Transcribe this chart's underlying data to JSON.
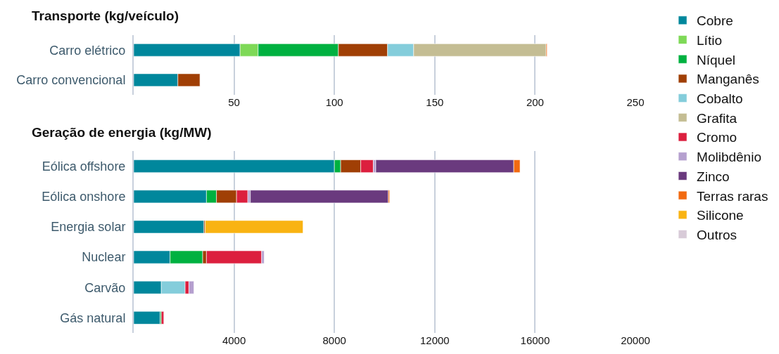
{
  "chart_data": [
    {
      "type": "bar",
      "title": "Transporte (kg/veículo)",
      "orientation": "horizontal",
      "stacked": true,
      "categories": [
        "Carro elétrico",
        "Carro convencional"
      ],
      "xlim": [
        0,
        250
      ],
      "xticks": [
        50,
        100,
        150,
        200,
        250
      ],
      "grid": "x",
      "legend": "right",
      "series": [
        {
          "name": "Cobre",
          "color": "#00879c",
          "values": [
            53,
            22
          ]
        },
        {
          "name": "Lítio",
          "color": "#7ed957",
          "values": [
            9,
            null
          ]
        },
        {
          "name": "Níquel",
          "color": "#00b140",
          "values": [
            40,
            null
          ]
        },
        {
          "name": "Manganês",
          "color": "#a03f05",
          "values": [
            24.5,
            11
          ]
        },
        {
          "name": "Cobalto",
          "color": "#84cddb",
          "values": [
            13,
            null
          ]
        },
        {
          "name": "Grafita",
          "color": "#c4bd93",
          "values": [
            66,
            null
          ]
        },
        {
          "name": "Terras raras",
          "color": "#f26a10",
          "values": [
            0.5,
            null
          ]
        }
      ]
    },
    {
      "type": "bar",
      "title": "Geração de energia (kg/MW)",
      "orientation": "horizontal",
      "stacked": true,
      "categories": [
        "Eólica offshore",
        "Eólica onshore",
        "Energia solar",
        "Nuclear",
        "Carvão",
        "Gás natural"
      ],
      "xlim": [
        0,
        20000
      ],
      "xticks": [
        4000,
        8000,
        12000,
        16000,
        20000
      ],
      "grid": "x",
      "legend": "right",
      "series": [
        {
          "name": "Cobre",
          "color": "#00879c",
          "values": [
            8000,
            2900,
            2800,
            1450,
            1100,
            1050
          ]
        },
        {
          "name": "Níquel",
          "color": "#00b140",
          "values": [
            250,
            400,
            null,
            1300,
            null,
            50
          ]
        },
        {
          "name": "Manganês",
          "color": "#a03f05",
          "values": [
            800,
            800,
            50,
            150,
            null,
            null
          ]
        },
        {
          "name": "Cobalto",
          "color": "#84cddb",
          "values": [
            null,
            null,
            null,
            null,
            950,
            null
          ]
        },
        {
          "name": "Cromo",
          "color": "#dc1f3e",
          "values": [
            500,
            450,
            null,
            2200,
            150,
            100
          ]
        },
        {
          "name": "Molibdênio",
          "color": "#b5a0cf",
          "values": [
            100,
            100,
            null,
            100,
            200,
            null
          ]
        },
        {
          "name": "Zinco",
          "color": "#6a3a7e",
          "values": [
            5500,
            5500,
            null,
            null,
            null,
            null
          ]
        },
        {
          "name": "Terras raras",
          "color": "#f26a10",
          "values": [
            250,
            50,
            null,
            null,
            null,
            null
          ]
        },
        {
          "name": "Silicone",
          "color": "#f9b312",
          "values": [
            null,
            null,
            3900,
            null,
            null,
            null
          ]
        },
        {
          "name": "Outros",
          "color": "#d8cbd8",
          "values": [
            null,
            null,
            null,
            null,
            null,
            null
          ]
        }
      ]
    }
  ]
}
